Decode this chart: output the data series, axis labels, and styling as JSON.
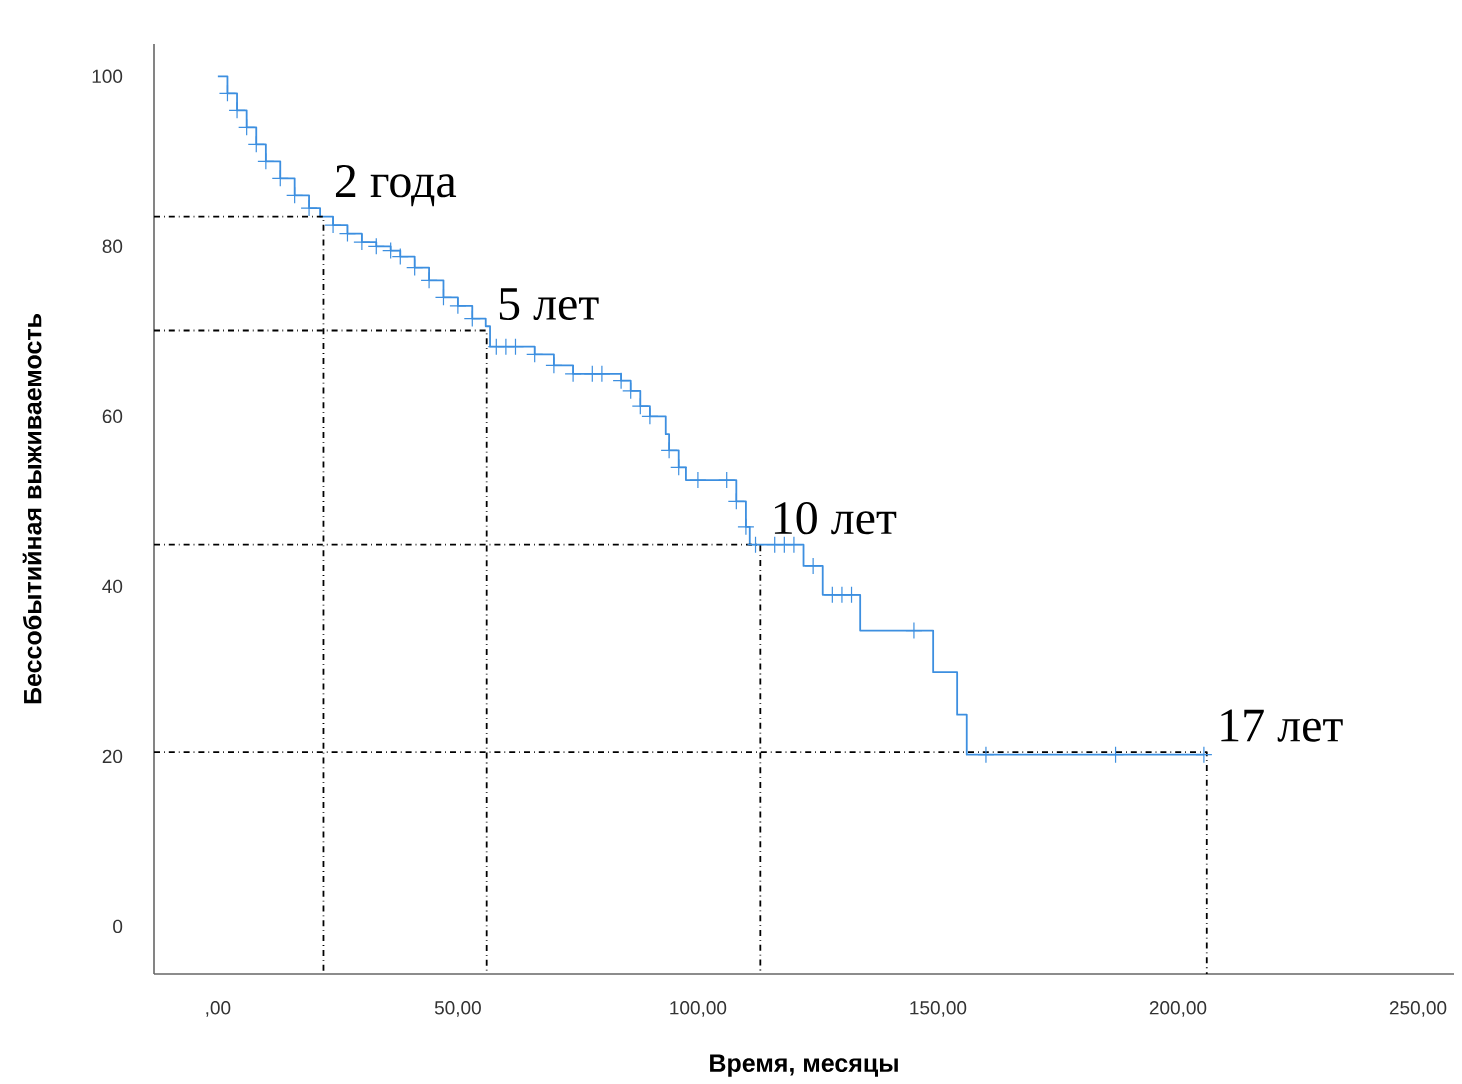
{
  "chart_data": {
    "type": "step",
    "xlabel": "Время, месяцы",
    "ylabel": "Бессобытийная выживаемость",
    "xlim": [
      -13.3,
      257.5
    ],
    "ylim": [
      -5.6,
      103.8
    ],
    "xticks": [
      {
        "value": 0,
        "label": ",00"
      },
      {
        "value": 50,
        "label": "50,00"
      },
      {
        "value": 100,
        "label": "100,00"
      },
      {
        "value": 150,
        "label": "150,00"
      },
      {
        "value": 200,
        "label": "200,00"
      },
      {
        "value": 250,
        "label": "250,00"
      }
    ],
    "yticks": [
      0,
      20,
      40,
      60,
      80,
      100
    ],
    "grid": false,
    "series": [
      {
        "color": "#3d8fe0",
        "marker": "none",
        "line_style": "solid",
        "x": [
          0,
          2,
          4,
          6,
          8,
          10,
          13,
          16,
          19,
          21.3,
          24,
          27,
          30,
          33,
          36,
          38,
          41,
          44,
          47,
          50,
          53,
          55.8,
          56.7,
          66,
          70,
          74,
          84,
          86,
          88,
          90,
          93.3,
          94,
          96,
          97.5,
          108,
          110,
          110.8,
          122,
          126,
          133.8,
          149,
          154,
          156,
          205.4
        ],
        "values": [
          100,
          98,
          96,
          94,
          92,
          90,
          88,
          86,
          84.5,
          83.5,
          82.5,
          81.5,
          80.5,
          80,
          79.5,
          78.8,
          77.5,
          76,
          74,
          73,
          71.5,
          70.6,
          68.2,
          67.3,
          66,
          65,
          64.2,
          63,
          61.2,
          60,
          57.9,
          56,
          54,
          52.5,
          50,
          47,
          44.9,
          42.4,
          39,
          34.8,
          29.9,
          24.9,
          20.2,
          20.2
        ]
      },
      {
        "type": "scatter",
        "color": "#3d8fe0",
        "marker": "cross",
        "line_style": "none",
        "x": [
          2,
          4,
          6,
          8,
          10,
          13,
          16,
          19,
          24,
          27,
          30,
          33,
          36,
          38,
          41,
          44,
          47,
          50,
          53,
          58,
          60,
          62,
          66,
          70,
          74,
          78,
          80,
          84,
          86,
          88,
          90,
          94,
          96,
          100,
          106,
          108,
          110,
          112,
          116,
          118,
          120,
          124,
          128,
          130,
          132,
          145,
          160,
          187,
          205.4
        ],
        "values": [
          98,
          96,
          94,
          92,
          90,
          88,
          86,
          84.5,
          82.5,
          81.5,
          80.5,
          80,
          79.5,
          78.8,
          77.5,
          76,
          74,
          73,
          71.5,
          68.2,
          68.2,
          68.2,
          67.3,
          66,
          65,
          65,
          65,
          64.2,
          63,
          61.2,
          60,
          56,
          54,
          52.5,
          52.5,
          50,
          47,
          44.9,
          44.9,
          44.9,
          44.9,
          42.4,
          39,
          39,
          39,
          34.8,
          20.2,
          20.2,
          20.2
        ]
      },
      {
        "type": "line",
        "color": "#000000",
        "marker": "none",
        "line_style": "dashed",
        "x": [
          -13.3,
          22,
          22
        ],
        "values": [
          83.5,
          83.5,
          -5.6
        ]
      },
      {
        "type": "line",
        "color": "#000000",
        "marker": "none",
        "line_style": "dashed",
        "x": [
          -13.3,
          56,
          56
        ],
        "values": [
          70.1,
          70.1,
          -5.6
        ]
      },
      {
        "type": "line",
        "color": "#000000",
        "marker": "none",
        "line_style": "dashed",
        "x": [
          -13.3,
          113,
          113
        ],
        "values": [
          44.9,
          44.9,
          -5.6
        ]
      },
      {
        "type": "line",
        "color": "#000000",
        "marker": "none",
        "line_style": "dashed",
        "x": [
          -13.3,
          206,
          206
        ],
        "values": [
          20.5,
          20.5,
          -5.6
        ]
      }
    ],
    "annotations": [
      {
        "text": "2 года",
        "x": 22,
        "y": 83.5
      },
      {
        "text": "5 лет",
        "x": 56,
        "y": 70.1
      },
      {
        "text": "10 лет",
        "x": 113,
        "y": 44.9
      },
      {
        "text": "17 лет",
        "x": 206,
        "y": 20.5
      }
    ]
  }
}
